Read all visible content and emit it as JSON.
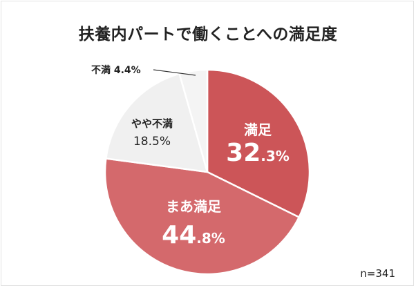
{
  "chart_data": {
    "type": "pie",
    "title": "扶養内パートで働くことへの満足度",
    "categories": [
      "満足",
      "まあ満足",
      "やや不満",
      "不満"
    ],
    "values": [
      32.3,
      44.8,
      18.5,
      4.4
    ],
    "unit": "%",
    "colors": [
      "#cc5558",
      "#d4696c",
      "#f0f0f0",
      "#f4f4f4"
    ],
    "start_angle": "12 o'clock",
    "direction": "clockwise",
    "sample_size": "n=341",
    "legend": "none (labels on slices)"
  },
  "title": "扶養内パートで働くことへの満足度",
  "labels": {
    "manzoku": {
      "name": "満足",
      "int": "32",
      "dec": ".3%"
    },
    "maa": {
      "name": "まあ満足",
      "int": "44",
      "dec": ".8%"
    },
    "yaya": {
      "name": "やや不満",
      "pct": "18.5%"
    },
    "fuman": {
      "text": "不満 4.4%"
    }
  },
  "footnote": "n=341"
}
